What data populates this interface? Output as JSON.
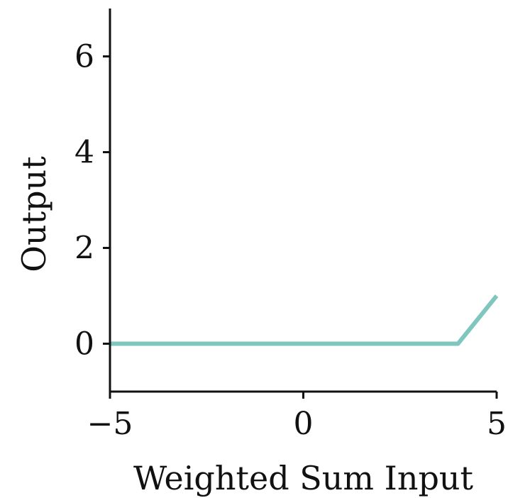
{
  "chart_data": {
    "type": "line",
    "title": "",
    "xlabel": "Weighted Sum Input",
    "ylabel": "Output",
    "xlim": [
      -5,
      5
    ],
    "ylim": [
      -1,
      7
    ],
    "xticks": [
      -5,
      0,
      5
    ],
    "xtick_labels": [
      "−5",
      "0",
      "5"
    ],
    "yticks": [
      0,
      2,
      4,
      6
    ],
    "ytick_labels": [
      "0",
      "2",
      "4",
      "6"
    ],
    "grid": false,
    "legend": "none",
    "series": [
      {
        "color": "#7fc6bf",
        "x": [
          -5,
          4,
          5
        ],
        "y": [
          0,
          0,
          1
        ]
      }
    ]
  }
}
